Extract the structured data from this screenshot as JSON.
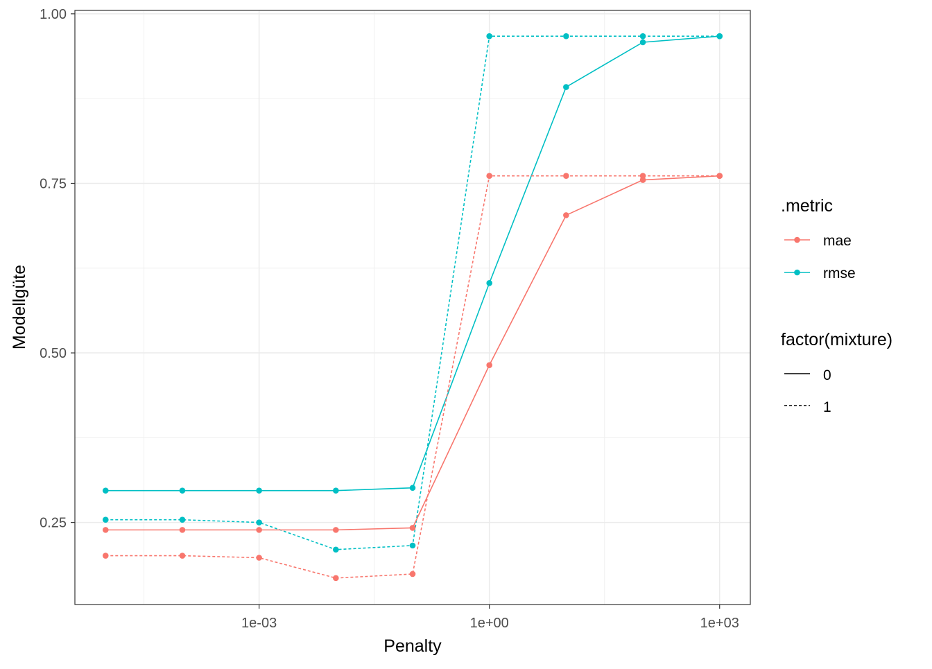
{
  "chart_data": {
    "type": "line",
    "xlabel": "Penalty",
    "ylabel": "Modellgüte",
    "x_scale": "log10",
    "x": [
      1e-05,
      0.0001,
      0.001,
      0.01,
      0.1,
      1,
      10,
      100,
      1000
    ],
    "xlim_log10": [
      -5.4,
      3.4
    ],
    "ylim": [
      0.129,
      1.005
    ],
    "xticks": [
      {
        "value": -3,
        "label": "1e-03"
      },
      {
        "value": 0,
        "label": "1e+00"
      },
      {
        "value": 3,
        "label": "1e+03"
      }
    ],
    "yticks": [
      {
        "value": 0.25,
        "label": "0.25"
      },
      {
        "value": 0.5,
        "label": "0.50"
      },
      {
        "value": 0.75,
        "label": "0.75"
      },
      {
        "value": 1.0,
        "label": "1.00"
      }
    ],
    "series": [
      {
        "name": "rmse, mixture 0",
        "metric": "rmse",
        "mixture": "0",
        "values": [
          0.297,
          0.297,
          0.297,
          0.297,
          0.301,
          0.603,
          0.892,
          0.958,
          0.967
        ]
      },
      {
        "name": "rmse, mixture 1",
        "metric": "rmse",
        "mixture": "1",
        "values": [
          0.254,
          0.254,
          0.25,
          0.21,
          0.216,
          0.967,
          0.967,
          0.967,
          0.967
        ]
      },
      {
        "name": "mae, mixture 0",
        "metric": "mae",
        "mixture": "0",
        "values": [
          0.239,
          0.239,
          0.239,
          0.239,
          0.242,
          0.482,
          0.703,
          0.755,
          0.761
        ]
      },
      {
        "name": "mae, mixture 1",
        "metric": "mae",
        "mixture": "1",
        "values": [
          0.201,
          0.201,
          0.198,
          0.168,
          0.174,
          0.761,
          0.761,
          0.761,
          0.761
        ]
      }
    ],
    "legend": {
      "placement": "right",
      "color_title": ".metric",
      "color_items": [
        {
          "label": "mae",
          "color": "#F8766D"
        },
        {
          "label": "rmse",
          "color": "#00BFC4"
        }
      ],
      "linetype_title": "factor(mixture)",
      "linetype_items": [
        {
          "label": "0",
          "dash": "solid"
        },
        {
          "label": "1",
          "dash": "dashed"
        }
      ]
    }
  }
}
